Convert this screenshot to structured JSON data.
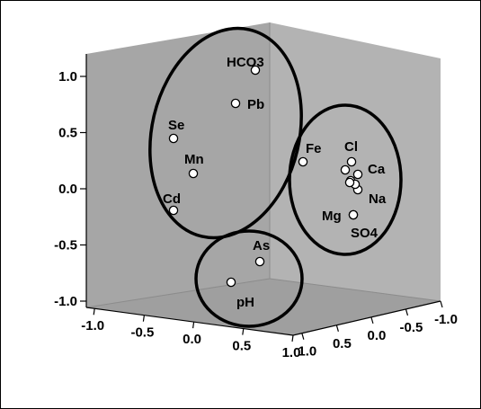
{
  "chart_data": {
    "type": "scatter",
    "projection": "3d",
    "title": "",
    "axis_ticks": {
      "vertical": [
        "1.0",
        "0.5",
        "0.0",
        "-0.5",
        "-1.0"
      ],
      "front": [
        "-1.0",
        "-0.5",
        "0.0",
        "0.5",
        "1.0"
      ],
      "side": [
        "1.0",
        "0.5",
        "0.0",
        "-0.5",
        "-1.0"
      ]
    },
    "colors": {
      "back_wall": "#a6a6a6",
      "side_wall": "#b3b3b3",
      "floor": "#9f9f9f",
      "point_fill": "#ffffff",
      "cluster_outline": "#000000"
    },
    "points": [
      {
        "label": "HCO3",
        "z": 1.05
      },
      {
        "label": "Pb",
        "z": 0.75
      },
      {
        "label": "Se",
        "z": 0.45
      },
      {
        "label": "Mn",
        "z": 0.15
      },
      {
        "label": "Cd",
        "z": -0.2
      },
      {
        "label": "Fe",
        "z": 0.25
      },
      {
        "label": "Cl",
        "z": 0.25
      },
      {
        "label": "Ca",
        "z": 0.1
      },
      {
        "label": "Na",
        "z": 0.0
      },
      {
        "label": "Mg",
        "z": -0.25
      },
      {
        "label": "SO4",
        "z": -0.25
      },
      {
        "label": "As",
        "z": -0.65
      },
      {
        "label": "pH",
        "z": -0.85
      },
      {
        "label": "",
        "z": 0.15
      },
      {
        "label": "",
        "z": 0.1
      },
      {
        "label": "",
        "z": 0.05
      },
      {
        "label": "",
        "z": 0.05
      }
    ],
    "clusters": [
      {
        "members": [
          "HCO3",
          "Pb",
          "Se",
          "Mn",
          "Cd"
        ]
      },
      {
        "members": [
          "Fe",
          "Cl",
          "Ca",
          "Na",
          "Mg",
          "SO4"
        ]
      },
      {
        "members": [
          "As",
          "pH"
        ]
      }
    ]
  }
}
